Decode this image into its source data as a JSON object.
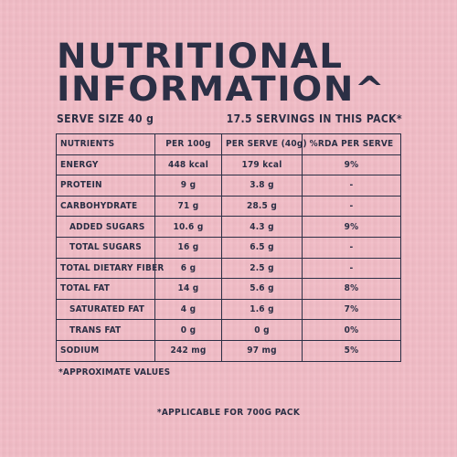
{
  "title": {
    "line1": "NUTRITIONAL",
    "line2": "INFORMATION^"
  },
  "serve": {
    "size": "SERVE SIZE 40 g",
    "servings": "17.5 SERVINGS IN THIS PACK*"
  },
  "table": {
    "headers": [
      "NUTRIENTS",
      "PER 100g",
      "PER SERVE (40g)",
      "%RDA PER SERVE"
    ],
    "rows": [
      {
        "name": "ENERGY",
        "per100": "448 kcal",
        "perServe": "179 kcal",
        "rda": "9%"
      },
      {
        "name": "PROTEIN",
        "per100": "9 g",
        "perServe": "3.8 g",
        "rda": "-"
      },
      {
        "name": "CARBOHYDRATE",
        "per100": "71 g",
        "perServe": "28.5 g",
        "rda": "-"
      },
      {
        "name": "ADDED SUGARS",
        "per100": "10.6 g",
        "perServe": "4.3 g",
        "rda": "9%"
      },
      {
        "name": "TOTAL SUGARS",
        "per100": "16 g",
        "perServe": "6.5 g",
        "rda": "-"
      },
      {
        "name": "TOTAL DIETARY FIBER",
        "per100": "6 g",
        "perServe": "2.5 g",
        "rda": "-"
      },
      {
        "name": "TOTAL FAT",
        "per100": "14 g",
        "perServe": "5.6 g",
        "rda": "8%"
      },
      {
        "name": "SATURATED FAT",
        "per100": "4 g",
        "perServe": "1.6 g",
        "rda": "7%"
      },
      {
        "name": "TRANS FAT",
        "per100": "0 g",
        "perServe": "0 g",
        "rda": "0%"
      },
      {
        "name": "SODIUM",
        "per100": "242 mg",
        "perServe": "97 mg",
        "rda": "5%"
      }
    ]
  },
  "footnote": "*APPROXIMATE VALUES",
  "bottom_note": "*APPLICABLE FOR 700G PACK",
  "colors": {
    "background": "#f1bcc6",
    "ink": "#2b2f45"
  }
}
